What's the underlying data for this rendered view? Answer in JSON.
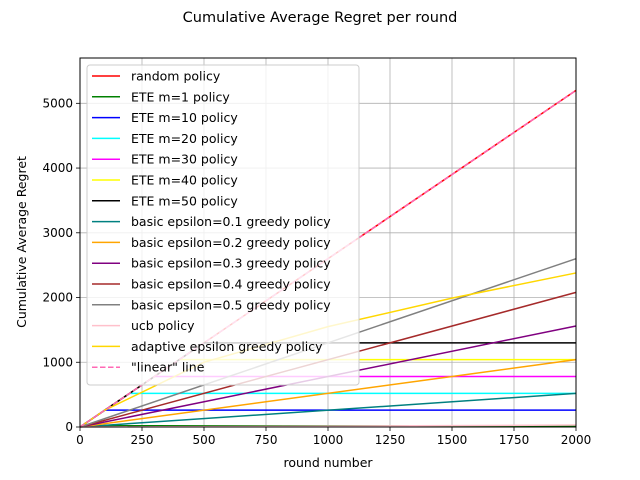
{
  "chart_data": {
    "type": "line",
    "title": "Cumulative Average Regret per round",
    "xlabel": "round number",
    "ylabel": "Cumulative Average Regret",
    "xlim": [
      0,
      2000
    ],
    "ylim": [
      0,
      5700
    ],
    "xticks": [
      0,
      250,
      500,
      750,
      1000,
      1250,
      1500,
      1750,
      2000
    ],
    "yticks": [
      0,
      1000,
      2000,
      3000,
      4000,
      5000
    ],
    "grid": true,
    "legend_position": "upper-left",
    "series": [
      {
        "name": "random policy",
        "color": "#ff0000",
        "dash": "solid",
        "points": [
          [
            0,
            0
          ],
          [
            2000,
            5200
          ]
        ]
      },
      {
        "name": "ETE m=1 policy",
        "color": "#008000",
        "dash": "solid",
        "points": [
          [
            0,
            0
          ],
          [
            10,
            20
          ],
          [
            2000,
            20
          ]
        ]
      },
      {
        "name": "ETE m=10 policy",
        "color": "#0000ff",
        "dash": "solid",
        "points": [
          [
            0,
            0
          ],
          [
            100,
            260
          ],
          [
            2000,
            260
          ]
        ]
      },
      {
        "name": "ETE m=20 policy",
        "color": "#00ffff",
        "dash": "solid",
        "points": [
          [
            0,
            0
          ],
          [
            200,
            520
          ],
          [
            2000,
            520
          ]
        ]
      },
      {
        "name": "ETE m=30 policy",
        "color": "#ff00ff",
        "dash": "solid",
        "points": [
          [
            0,
            0
          ],
          [
            300,
            780
          ],
          [
            2000,
            780
          ]
        ]
      },
      {
        "name": "ETE m=40 policy",
        "color": "#ffff00",
        "dash": "solid",
        "points": [
          [
            0,
            0
          ],
          [
            400,
            1040
          ],
          [
            2000,
            1040
          ]
        ]
      },
      {
        "name": "ETE m=50 policy",
        "color": "#000000",
        "dash": "solid",
        "points": [
          [
            0,
            0
          ],
          [
            500,
            1300
          ],
          [
            2000,
            1300
          ]
        ]
      },
      {
        "name": "basic epsilon=0.1 greedy policy",
        "color": "#008080",
        "dash": "solid",
        "points": [
          [
            0,
            0
          ],
          [
            2000,
            520
          ]
        ]
      },
      {
        "name": "basic epsilon=0.2 greedy policy",
        "color": "#ffa500",
        "dash": "solid",
        "points": [
          [
            0,
            0
          ],
          [
            2000,
            1040
          ]
        ]
      },
      {
        "name": "basic epsilon=0.3 greedy policy",
        "color": "#800080",
        "dash": "solid",
        "points": [
          [
            0,
            0
          ],
          [
            2000,
            1560
          ]
        ]
      },
      {
        "name": "basic epsilon=0.4 greedy policy",
        "color": "#a52a2a",
        "dash": "solid",
        "points": [
          [
            0,
            0
          ],
          [
            2000,
            2080
          ]
        ]
      },
      {
        "name": "basic epsilon=0.5 greedy policy",
        "color": "#808080",
        "dash": "solid",
        "points": [
          [
            0,
            0
          ],
          [
            2000,
            2600
          ]
        ]
      },
      {
        "name": "ucb policy",
        "color": "#ffc0cb",
        "dash": "solid",
        "points": [
          [
            0,
            0
          ],
          [
            2000,
            30
          ]
        ]
      },
      {
        "name": "adaptive epsilon greedy policy",
        "color": "#ffd700",
        "dash": "solid",
        "points": [
          [
            0,
            0
          ],
          [
            100,
            260
          ],
          [
            500,
            1000
          ],
          [
            1000,
            1550
          ],
          [
            1500,
            1990
          ],
          [
            2000,
            2380
          ]
        ]
      },
      {
        "name": "\"linear\" line",
        "color": "#ff69b4",
        "dash": "dashed",
        "points": [
          [
            0,
            0
          ],
          [
            2000,
            5200
          ]
        ]
      }
    ]
  }
}
